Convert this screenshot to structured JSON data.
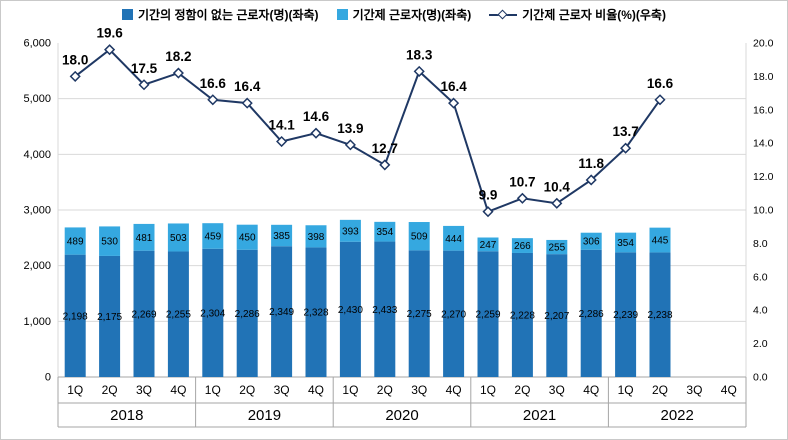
{
  "legend": {
    "permanent": "기간의 정함이 없는 근로자(명)(좌축)",
    "fixed_term": "기간제 근로자(명)(좌축)",
    "ratio": "기간제 근로자 비율(%)(우축)"
  },
  "colors": {
    "permanent_bar": "#2173b6",
    "fixed_term_bar": "#35a8e0",
    "ratio_line": "#1f3864",
    "grid": "#d9d9d9",
    "axis_line": "#a6a6a6",
    "axis_text": "#333333"
  },
  "chart_data": {
    "type": "bar",
    "subtype": "stacked-bar-with-line-combo",
    "title": "",
    "legend_position": "top",
    "grid": true,
    "categories": [
      "1Q",
      "2Q",
      "3Q",
      "4Q",
      "1Q",
      "2Q",
      "3Q",
      "4Q",
      "1Q",
      "2Q",
      "3Q",
      "4Q",
      "1Q",
      "2Q",
      "3Q",
      "4Q",
      "1Q",
      "2Q",
      "3Q",
      "4Q"
    ],
    "year_groups": [
      "2018",
      "2019",
      "2020",
      "2021",
      "2022"
    ],
    "left_axis": {
      "min": 0,
      "max": 6000,
      "step": 1000,
      "tick_labels": [
        "0",
        "1,000",
        "2,000",
        "3,000",
        "4,000",
        "5,000",
        "6,000"
      ]
    },
    "right_axis": {
      "min": 0,
      "max": 20,
      "step": 2,
      "tick_labels": [
        "0.0",
        "2.0",
        "4.0",
        "6.0",
        "8.0",
        "10.0",
        "12.0",
        "14.0",
        "16.0",
        "18.0",
        "20.0"
      ]
    },
    "series": [
      {
        "name": "기간의 정함이 없는 근로자(명)(좌축)",
        "type": "bar",
        "axis": "left",
        "values": [
          2198,
          2175,
          2269,
          2255,
          2304,
          2286,
          2349,
          2328,
          2430,
          2433,
          2275,
          2270,
          2259,
          2228,
          2207,
          2286,
          2239,
          2238,
          null,
          null
        ]
      },
      {
        "name": "기간제 근로자(명)(좌축)",
        "type": "bar",
        "axis": "left",
        "values": [
          489,
          530,
          481,
          503,
          459,
          450,
          385,
          398,
          393,
          354,
          509,
          444,
          247,
          266,
          255,
          306,
          354,
          445,
          null,
          null
        ]
      },
      {
        "name": "기간제 근로자 비율(%)(우축)",
        "type": "line",
        "axis": "right",
        "values": [
          18.0,
          19.6,
          17.5,
          18.2,
          16.6,
          16.4,
          14.1,
          14.6,
          13.9,
          12.7,
          18.3,
          16.4,
          9.9,
          10.7,
          10.4,
          11.8,
          13.7,
          16.6,
          null,
          null
        ]
      }
    ]
  }
}
